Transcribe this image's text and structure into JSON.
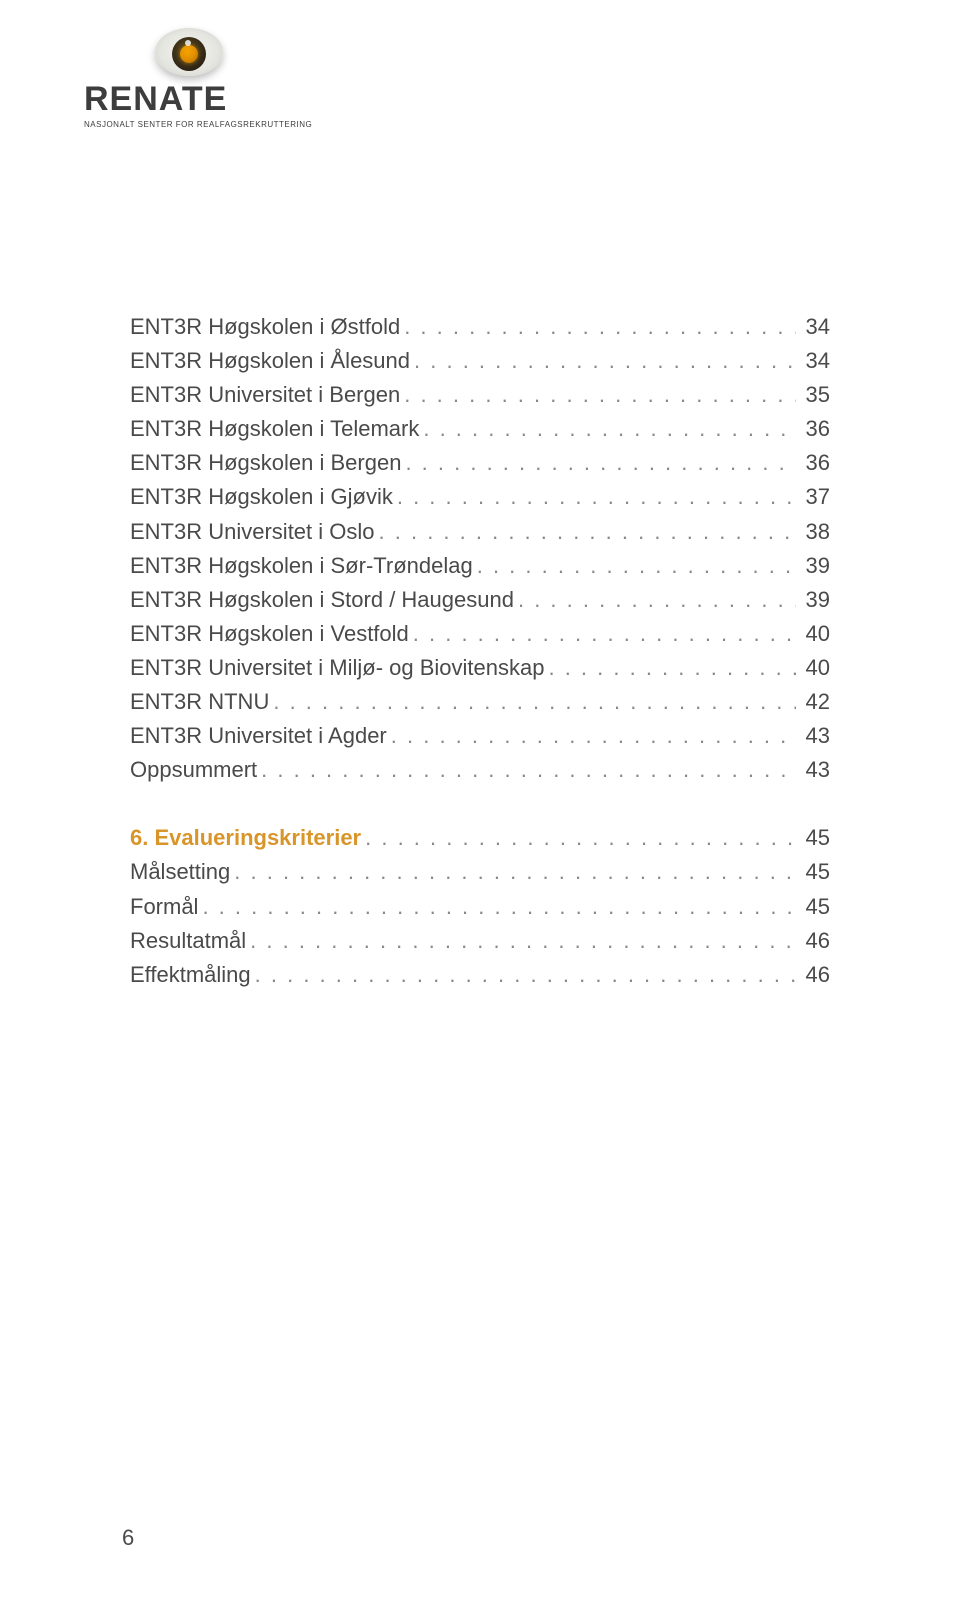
{
  "logo": {
    "wordmark": "RENATE",
    "subtitle": "NASJONALT SENTER FOR REALFAGSREKRUTTERING"
  },
  "toc": {
    "entries": [
      {
        "title": "ENT3R Høgskolen i Østfold",
        "page": "34",
        "section": false
      },
      {
        "title": "ENT3R Høgskolen i Ålesund",
        "page": "34",
        "section": false
      },
      {
        "title": "ENT3R Universitet i Bergen",
        "page": "35",
        "section": false
      },
      {
        "title": "ENT3R Høgskolen i Telemark",
        "page": "36",
        "section": false
      },
      {
        "title": "ENT3R Høgskolen i Bergen",
        "page": "36",
        "section": false
      },
      {
        "title": "ENT3R Høgskolen i Gjøvik",
        "page": "37",
        "section": false
      },
      {
        "title": "ENT3R Universitet i Oslo",
        "page": "38",
        "section": false
      },
      {
        "title": "ENT3R Høgskolen i Sør-Trøndelag",
        "page": "39",
        "section": false
      },
      {
        "title": "ENT3R Høgskolen i Stord / Haugesund",
        "page": "39",
        "section": false
      },
      {
        "title": "ENT3R Høgskolen i Vestfold",
        "page": "40",
        "section": false
      },
      {
        "title": "ENT3R Universitet i Miljø- og Biovitenskap",
        "page": "40",
        "section": false
      },
      {
        "title": "ENT3R NTNU",
        "page": "42",
        "section": false
      },
      {
        "title": "ENT3R Universitet i Agder",
        "page": "43",
        "section": false
      },
      {
        "title": "Oppsummert",
        "page": "43",
        "section": false
      },
      {
        "title": "6. Evalueringskriterier",
        "page": "45",
        "section": true
      },
      {
        "title": "Målsetting",
        "page": "45",
        "section": false
      },
      {
        "title": "Formål",
        "page": "45",
        "section": false
      },
      {
        "title": "Resultatmål",
        "page": "46",
        "section": false
      },
      {
        "title": "Effektmåling",
        "page": "46",
        "section": false
      }
    ],
    "spacer_before_index": 14
  },
  "colors": {
    "section_color": "#d8962a",
    "text_color": "#4a4a4a",
    "leader_color": "#888888"
  },
  "page_number": "6"
}
